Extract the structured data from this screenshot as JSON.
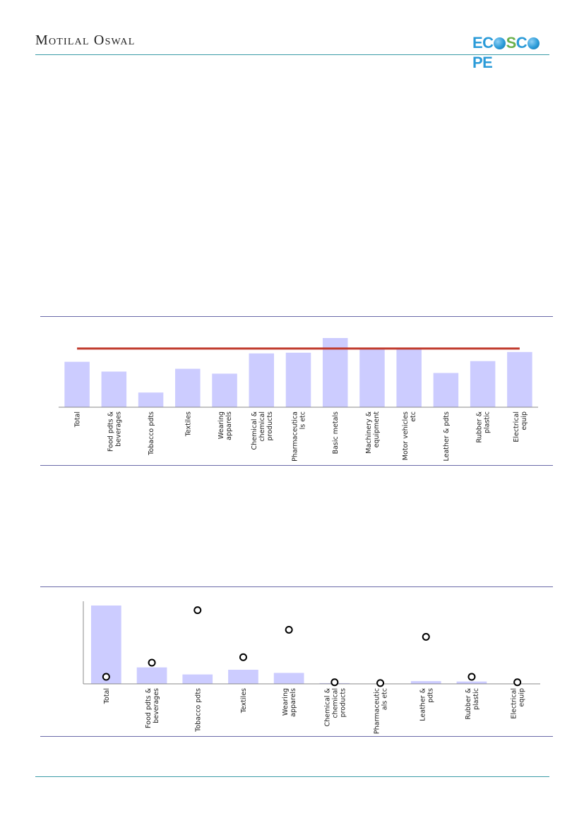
{
  "header": {
    "brand": "Motilal Oswal",
    "logo": {
      "part1": "EC",
      "part2": "S",
      "part3": "C",
      "part4": "PE"
    }
  },
  "colors": {
    "bar": "#ccccff",
    "line": "#c0392b",
    "rule": "#3a9aa6",
    "frame": "#6a6aa8"
  },
  "chart_data": [
    {
      "type": "bar",
      "categories": [
        "Total",
        "Food pdts & beverages",
        "Tobacco pdts",
        "Textiles",
        "Wearing apparels",
        "Chemical & chemical products",
        "Pharmaceuticals etc",
        "Basic metals",
        "Machinery & equipment",
        "Motor vehicles etc",
        "Leather & pdts",
        "Rubber & plastic",
        "Electrical equip"
      ],
      "tick_labels": [
        [
          "Total"
        ],
        [
          "Food pdts &",
          "beverages"
        ],
        [
          "Tobacco pdts"
        ],
        [
          "Textiles"
        ],
        [
          "Wearing",
          "apparels"
        ],
        [
          "Chemical &",
          "chemical",
          "products"
        ],
        [
          "Pharmaceutica",
          "ls etc"
        ],
        [
          "Basic metals"
        ],
        [
          "Machinery &",
          "equipment"
        ],
        [
          "Motor vehicles",
          "etc"
        ],
        [
          "Leather & pdts"
        ],
        [
          "Rubber &",
          "plastic"
        ],
        [
          "Electrical",
          "equip"
        ]
      ],
      "values": [
        65,
        51,
        21,
        55,
        48,
        77,
        78,
        99,
        85,
        83,
        49,
        66,
        79
      ],
      "reference_line": 84,
      "ylim": [
        0,
        100
      ]
    },
    {
      "type": "bar",
      "categories": [
        "Total",
        "Food pdts & beverages",
        "Tobacco pdts",
        "Textiles",
        "Wearing apparels",
        "Chemical & chemical products",
        "Pharmaceuticals etc",
        "Leather & pdts",
        "Rubber & plastic",
        "Electrical equip"
      ],
      "tick_labels": [
        [
          "Total"
        ],
        [
          "Food pdts &",
          "beverages"
        ],
        [
          "Tobacco pdts"
        ],
        [
          "Textiles"
        ],
        [
          "Wearing",
          "apparels"
        ],
        [
          "Chemical &",
          "chemical",
          "products"
        ],
        [
          "Pharmaceutic",
          "als etc"
        ],
        [
          "Leather &",
          "pdts"
        ],
        [
          "Rubber &",
          "plastic"
        ],
        [
          "Electrical",
          "equip"
        ]
      ],
      "values": [
        100,
        21,
        12,
        18,
        14,
        1,
        0,
        3.5,
        3,
        0
      ],
      "markers": [
        9,
        27,
        94,
        34,
        69,
        2,
        1,
        60,
        9,
        2
      ],
      "ylim": [
        0,
        100
      ]
    }
  ]
}
